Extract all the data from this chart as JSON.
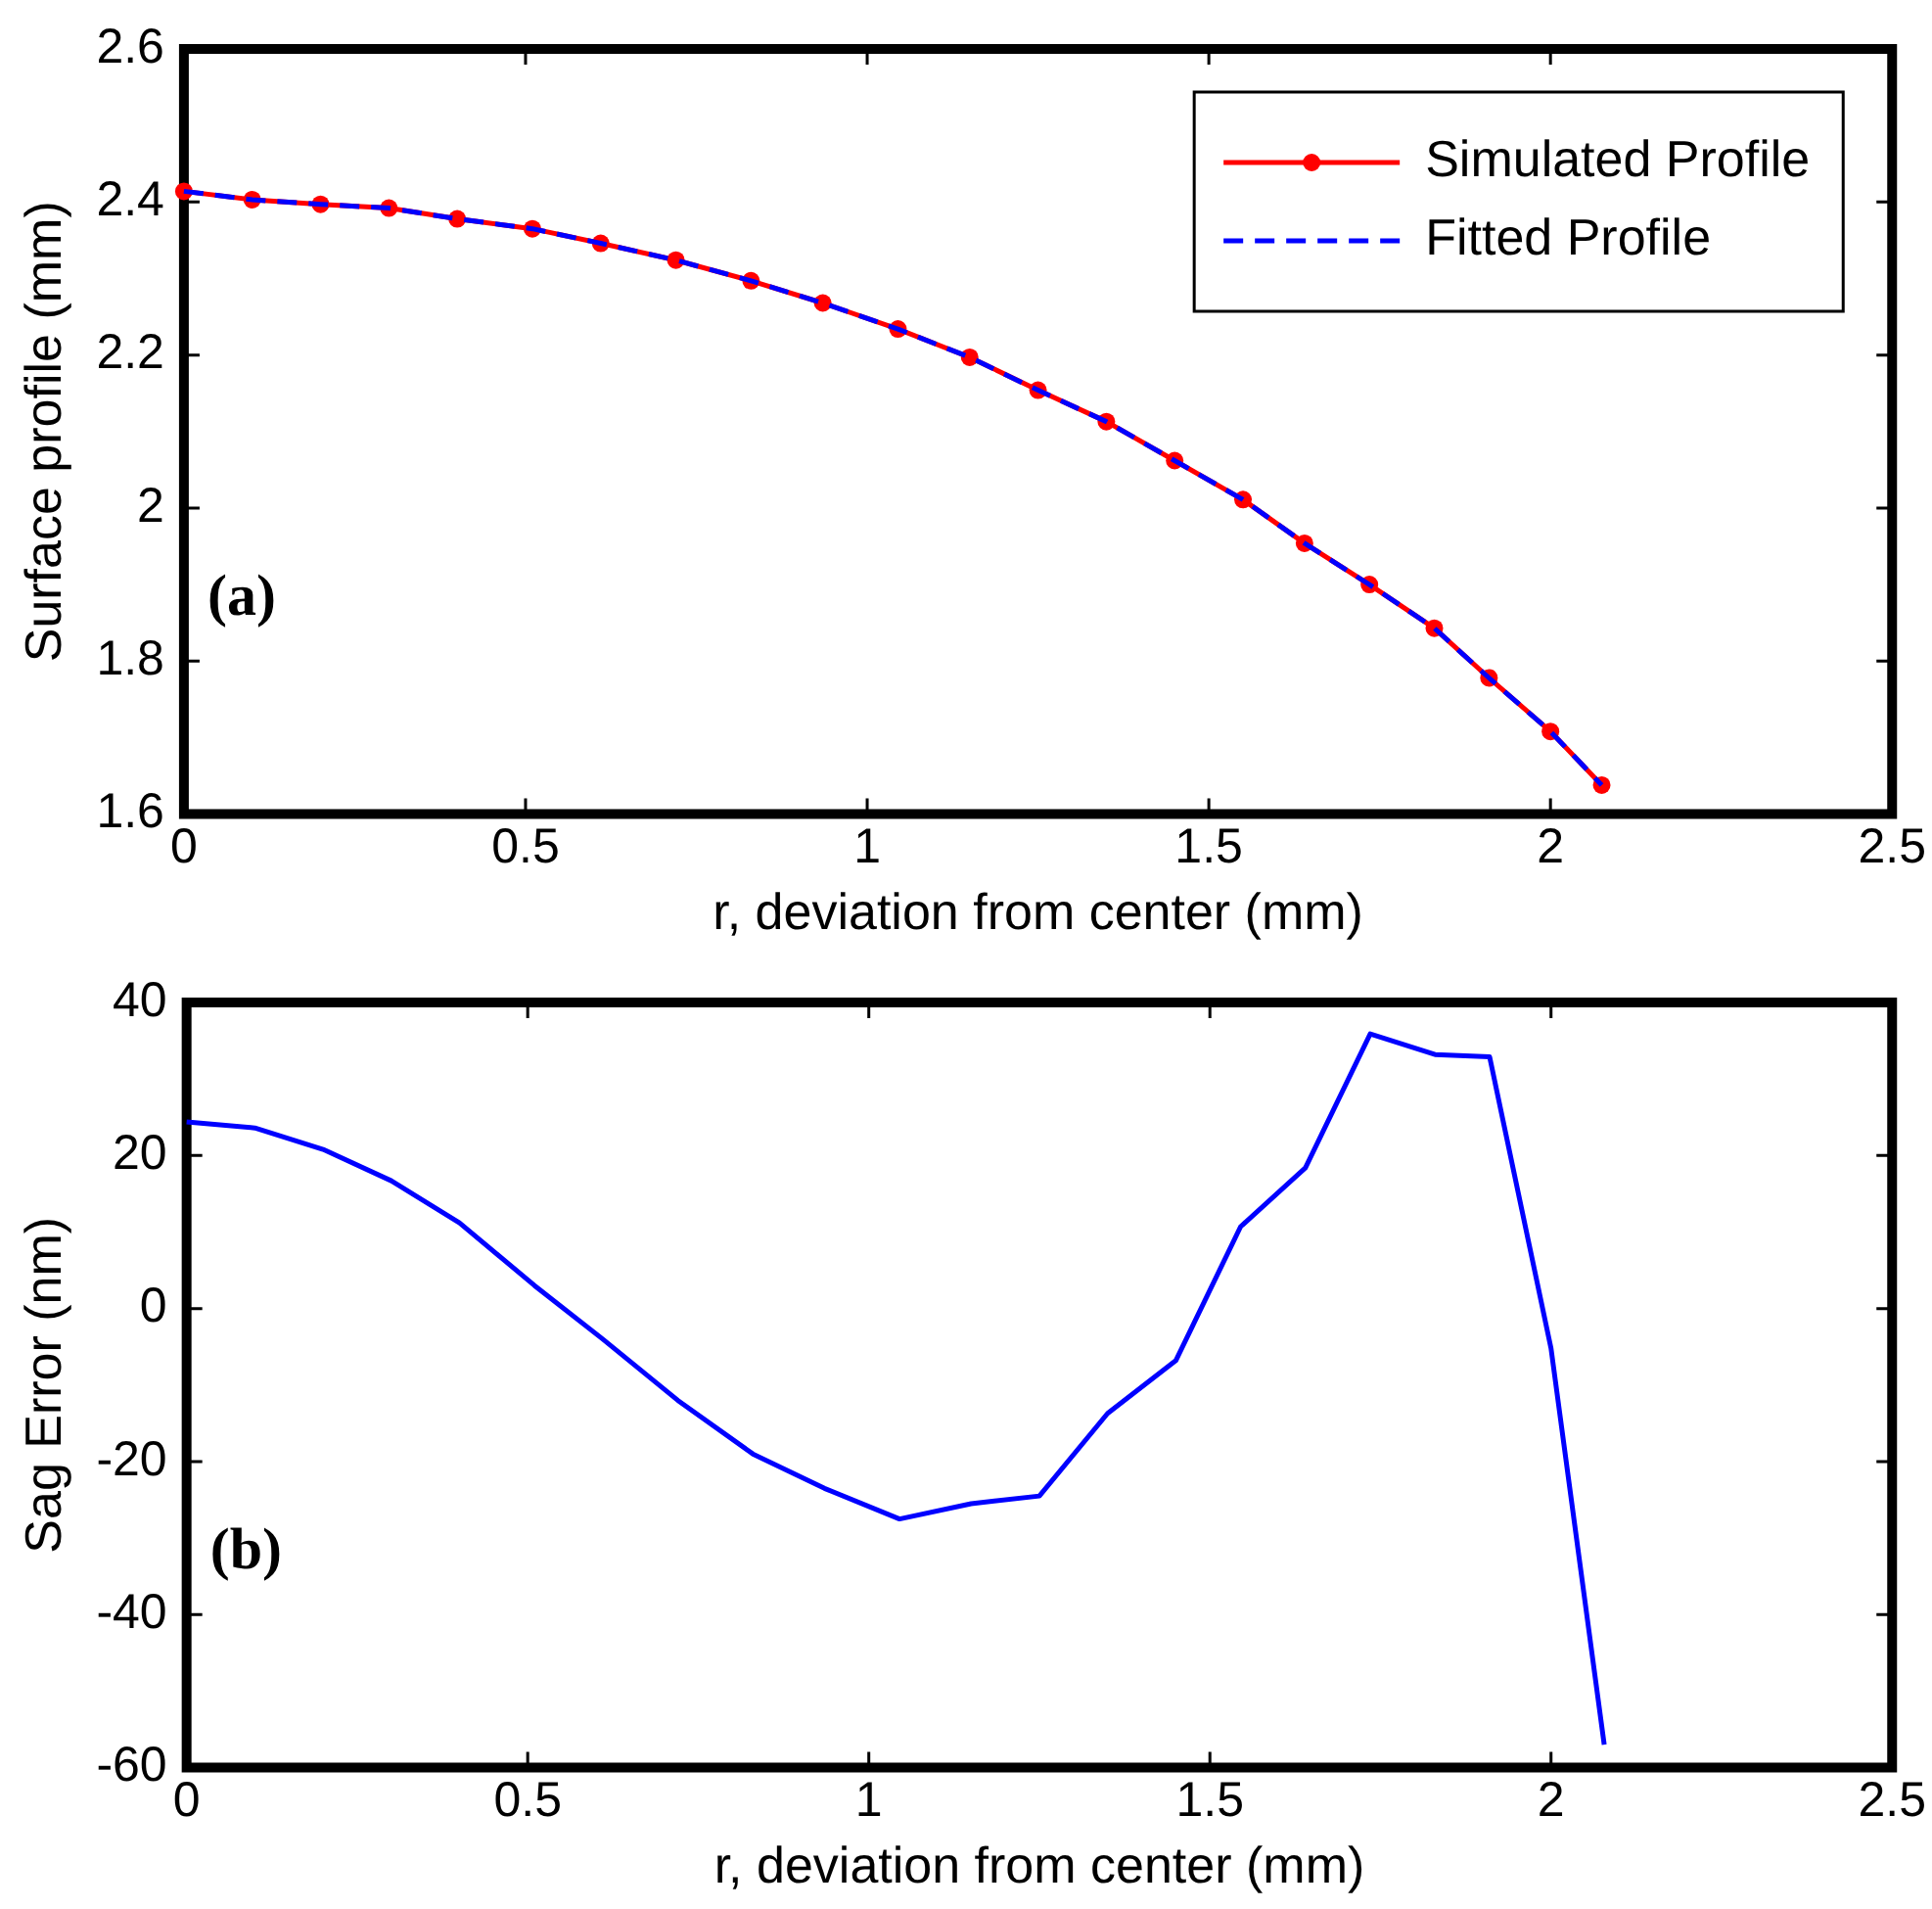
{
  "chart_data": [
    {
      "type": "line",
      "xlabel": "r, deviation from center (mm)",
      "ylabel": "Surface profile (mm)",
      "x": [
        0,
        0.1,
        0.2,
        0.3,
        0.4,
        0.51,
        0.61,
        0.72,
        0.83,
        0.935,
        1.045,
        1.15,
        1.25,
        1.35,
        1.45,
        1.55,
        1.64,
        1.735,
        1.83,
        1.91,
        2.0,
        2.075
      ],
      "series": [
        {
          "name": "Simulated Profile",
          "color": "#ff0000",
          "marker": "circle",
          "line_style": "solid",
          "values": [
            2.414,
            2.403,
            2.397,
            2.392,
            2.378,
            2.365,
            2.346,
            2.324,
            2.297,
            2.268,
            2.234,
            2.197,
            2.154,
            2.113,
            2.062,
            2.011,
            1.954,
            1.9,
            1.843,
            1.778,
            1.708,
            1.638
          ]
        },
        {
          "name": "Fitted Profile",
          "color": "#0000ff",
          "marker": "none",
          "line_style": "dashed",
          "values": [
            2.414,
            2.403,
            2.397,
            2.392,
            2.378,
            2.365,
            2.346,
            2.324,
            2.297,
            2.268,
            2.234,
            2.197,
            2.154,
            2.113,
            2.062,
            2.011,
            1.954,
            1.9,
            1.843,
            1.778,
            1.708,
            1.638
          ]
        }
      ],
      "xlim": [
        0,
        2.5
      ],
      "xticks": [
        0,
        0.5,
        1,
        1.5,
        2,
        2.5
      ],
      "ylim": [
        1.6,
        2.6
      ],
      "yticks": [
        1.6,
        1.8,
        2,
        2.2,
        2.4,
        2.6
      ],
      "grid": false,
      "legend": "top right",
      "annotations": [
        "(a)"
      ]
    },
    {
      "type": "line",
      "xlabel": "r, deviation from center (mm)",
      "ylabel": "Sag Error (nm)",
      "x": [
        0,
        0.1,
        0.2,
        0.3,
        0.4,
        0.51,
        0.61,
        0.72,
        0.83,
        0.935,
        1.045,
        1.15,
        1.25,
        1.35,
        1.45,
        1.545,
        1.64,
        1.735,
        1.83,
        1.91,
        2.0,
        2.078
      ],
      "series": [
        {
          "color": "#0000ff",
          "marker": "none",
          "line_style": "solid",
          "values": [
            24.4,
            23.6,
            20.8,
            16.7,
            11.2,
            3,
            -4,
            -12,
            -19,
            -23.5,
            -27.5,
            -25.5,
            -24.5,
            -13.7,
            -6.8,
            10.7,
            18.4,
            35.9,
            33.2,
            32.9,
            -5.2,
            -57
          ]
        }
      ],
      "xlim": [
        0,
        2.5
      ],
      "xticks": [
        0,
        0.5,
        1,
        1.5,
        2,
        2.5
      ],
      "ylim": [
        -60,
        40
      ],
      "yticks": [
        -60,
        -40,
        -20,
        0,
        20,
        40
      ],
      "grid": false,
      "legend": false,
      "annotations": [
        "(b)"
      ]
    }
  ]
}
